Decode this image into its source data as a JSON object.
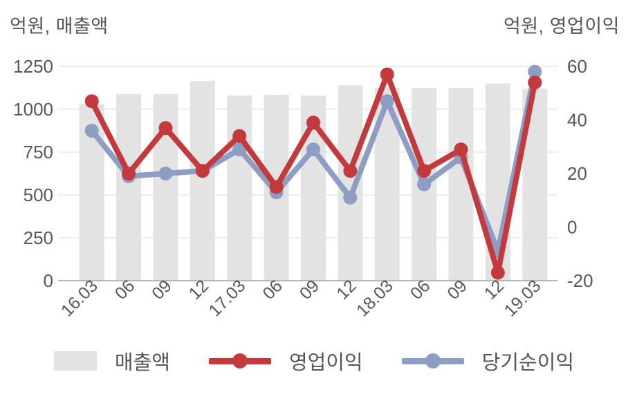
{
  "page": {
    "background": "#ffffff"
  },
  "axis_left": {
    "title": "억원, 매출액",
    "ticks": [
      1250,
      1000,
      750,
      500,
      250,
      0
    ],
    "min": 0,
    "max": 1250
  },
  "axis_right": {
    "title": "억원, 영업이익",
    "ticks": [
      60,
      40,
      20,
      0,
      -20
    ],
    "min": -20,
    "max": 60
  },
  "chart_data": {
    "type": "combo-bar-line",
    "categories": [
      "16.03",
      "06",
      "09",
      "12",
      "17.03",
      "06",
      "09",
      "12",
      "18.03",
      "06",
      "09",
      "12",
      "19.03"
    ],
    "series": [
      {
        "name": "매출액",
        "slug": "revenue",
        "type": "bar",
        "axis": "left",
        "color": "#e3e3e3",
        "values": [
          1030,
          1090,
          1090,
          1165,
          1080,
          1085,
          1080,
          1140,
          1125,
          1125,
          1125,
          1150,
          1120
        ]
      },
      {
        "name": "영업이익",
        "slug": "operating-profit",
        "type": "line",
        "axis": "right",
        "color": "#c23a3c",
        "values": [
          47,
          20,
          37,
          21,
          34,
          15,
          39,
          21,
          57,
          21,
          29,
          -17,
          54
        ]
      },
      {
        "name": "당기순이익",
        "slug": "net-income",
        "type": "line",
        "axis": "right",
        "color": "#8e9dc3",
        "values": [
          36,
          19,
          20,
          21,
          29,
          13,
          29,
          11,
          47,
          16,
          26,
          -9,
          58
        ]
      }
    ],
    "left_ylim": [
      0,
      1250
    ],
    "right_ylim": [
      -20,
      60
    ],
    "grid": true,
    "legend_position": "bottom"
  },
  "colors": {
    "grid": "#e8e8e8",
    "axis_line": "#a3a3a3",
    "tick_text": "#575757",
    "title_text": "#565656"
  }
}
